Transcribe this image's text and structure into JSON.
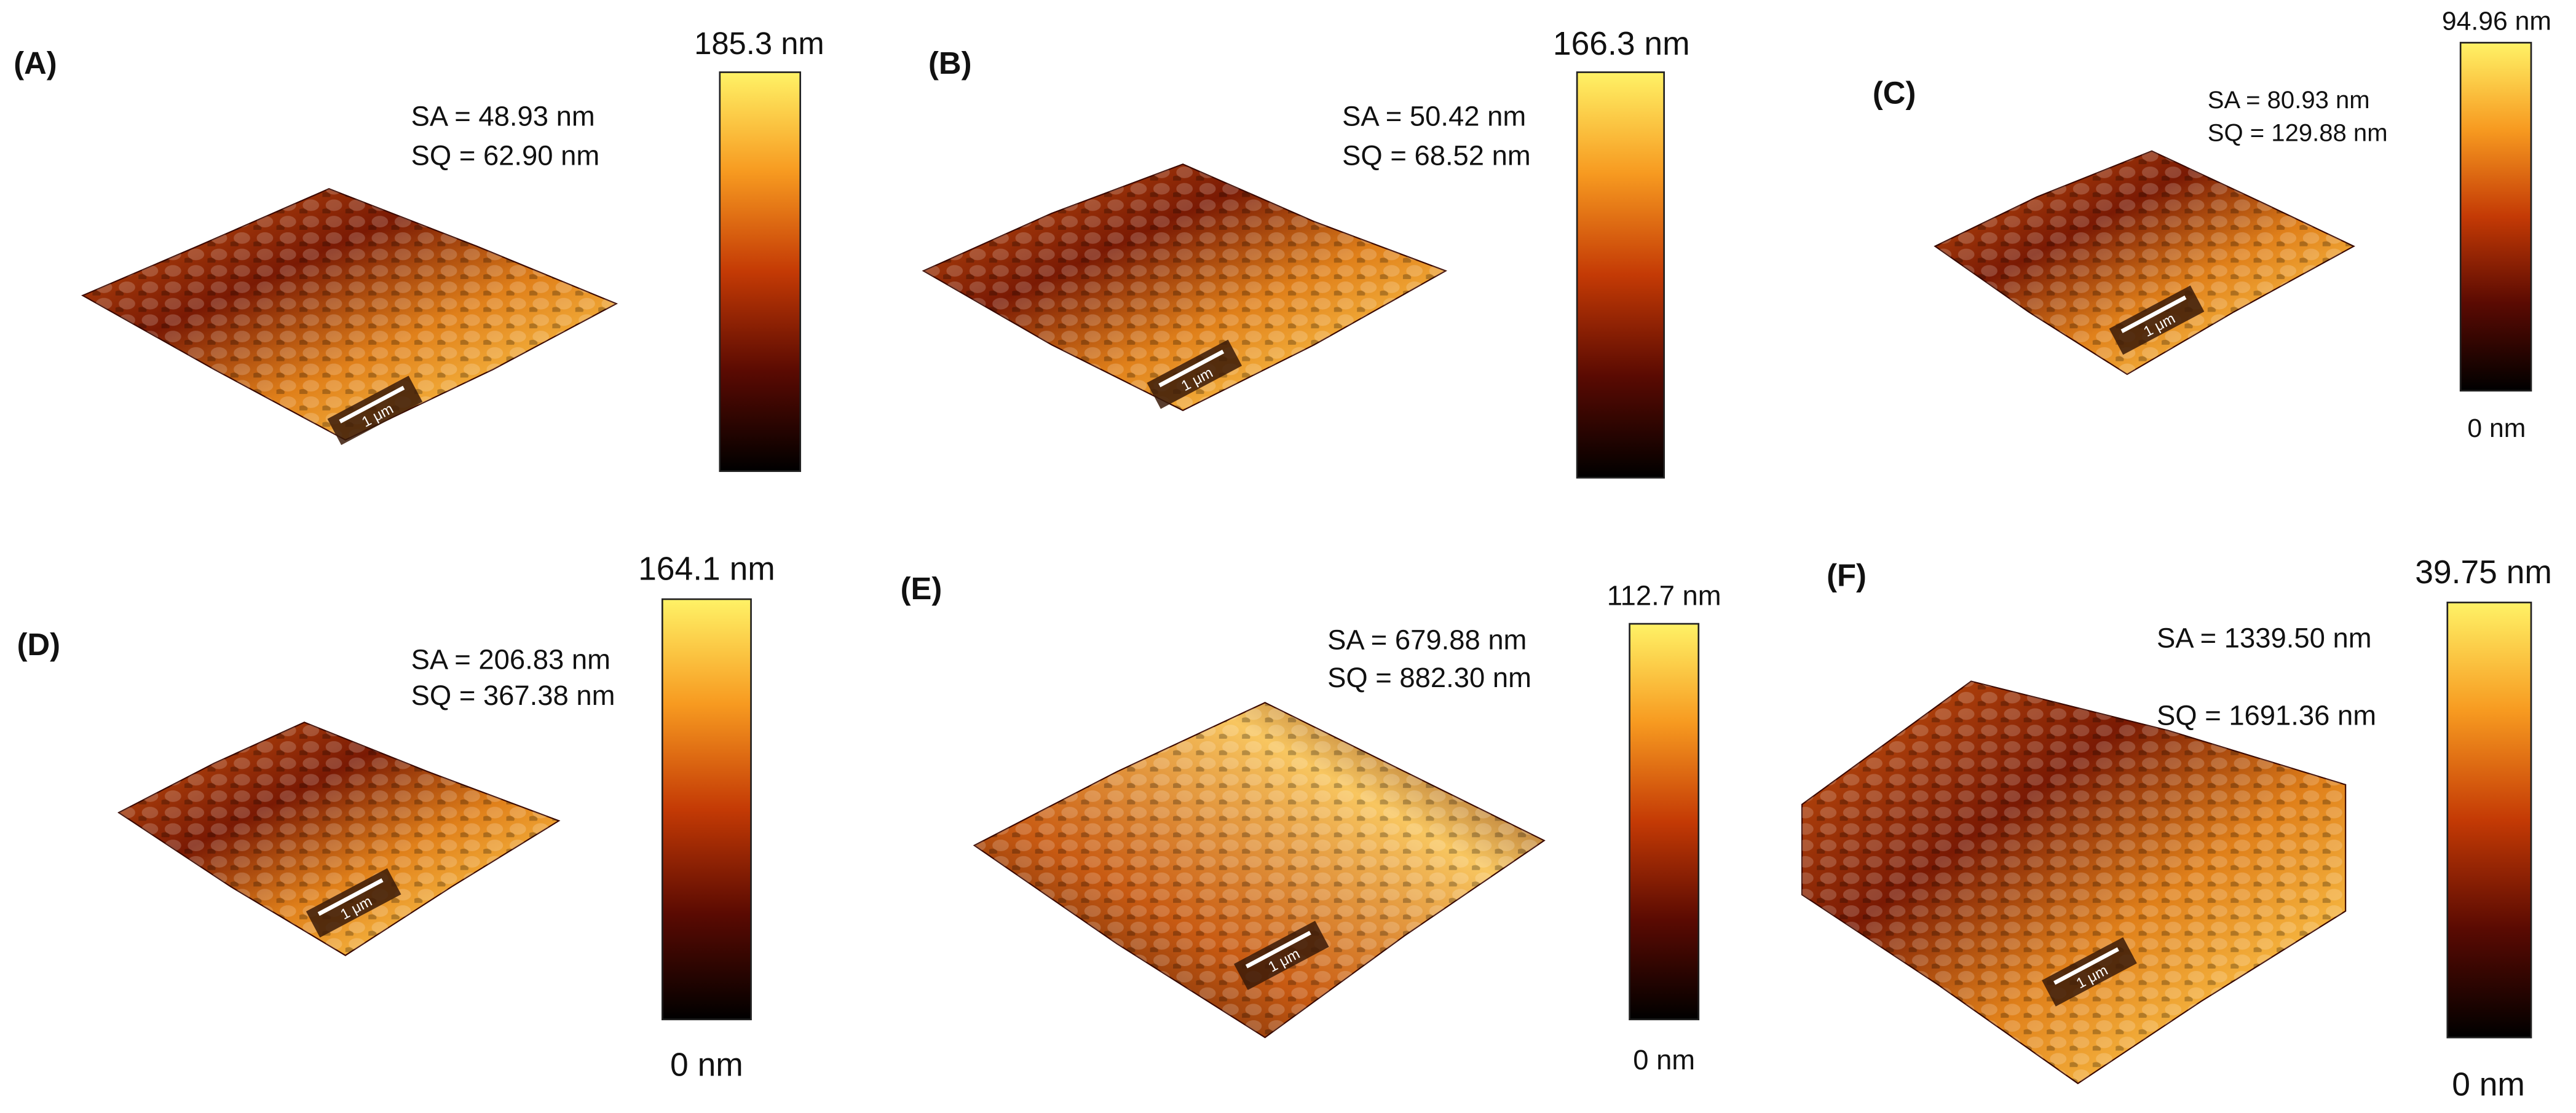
{
  "panels": [
    {
      "label": "(A)",
      "sa": "SA = 48.93 nm",
      "sq": "SQ = 62.90 nm",
      "scale_bar": "1 μm",
      "color_max": "185.3 nm"
    },
    {
      "label": "(B)",
      "sa": "SA = 50.42 nm",
      "sq": "SQ = 68.52 nm",
      "scale_bar": "1 μm",
      "color_max": "166.3 nm"
    },
    {
      "label": "(C)",
      "sa": "SA = 80.93 nm",
      "sq": "SQ = 129.88 nm",
      "scale_bar": "1 μm",
      "color_max": "94.96 nm",
      "color_min": "0 nm"
    },
    {
      "label": "(D)",
      "sa": "SA = 206.83 nm",
      "sq": "SQ = 367.38 nm",
      "scale_bar": "1 μm",
      "color_max": "164.1 nm",
      "color_min": "0 nm"
    },
    {
      "label": "(E)",
      "sa": "SA = 679.88 nm",
      "sq": "SQ = 882.30 nm",
      "scale_bar": "1 μm",
      "color_max": "112.7 nm",
      "color_min": "0 nm"
    },
    {
      "label": "(F)",
      "sa": "SA = 1339.50 nm",
      "sq": "SQ = 1691.36 nm",
      "scale_bar": "1 μm",
      "color_max": "39.75 nm",
      "color_min": "0 nm"
    }
  ]
}
